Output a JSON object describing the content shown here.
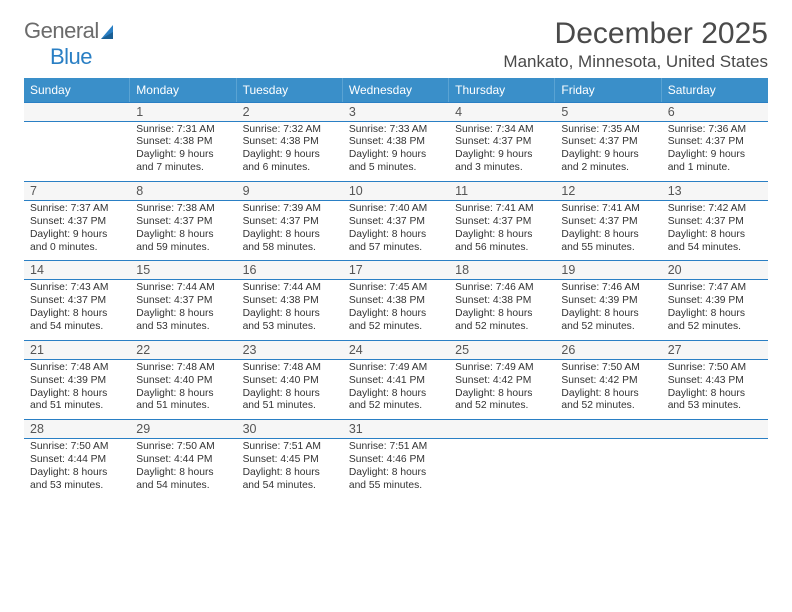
{
  "logo": {
    "text_gray": "General",
    "text_blue": "Blue"
  },
  "header": {
    "title": "December 2025",
    "location": "Mankato, Minnesota, United States"
  },
  "colors": {
    "header_bg": "#3a8fc9",
    "border": "#2a7fc4",
    "gray_text": "#6b6b6b"
  },
  "dow": [
    "Sunday",
    "Monday",
    "Tuesday",
    "Wednesday",
    "Thursday",
    "Friday",
    "Saturday"
  ],
  "weeks": [
    [
      {
        "num": "",
        "sunrise": "",
        "sunset": "",
        "daylight1": "",
        "daylight2": ""
      },
      {
        "num": "1",
        "sunrise": "Sunrise: 7:31 AM",
        "sunset": "Sunset: 4:38 PM",
        "daylight1": "Daylight: 9 hours",
        "daylight2": "and 7 minutes."
      },
      {
        "num": "2",
        "sunrise": "Sunrise: 7:32 AM",
        "sunset": "Sunset: 4:38 PM",
        "daylight1": "Daylight: 9 hours",
        "daylight2": "and 6 minutes."
      },
      {
        "num": "3",
        "sunrise": "Sunrise: 7:33 AM",
        "sunset": "Sunset: 4:38 PM",
        "daylight1": "Daylight: 9 hours",
        "daylight2": "and 5 minutes."
      },
      {
        "num": "4",
        "sunrise": "Sunrise: 7:34 AM",
        "sunset": "Sunset: 4:37 PM",
        "daylight1": "Daylight: 9 hours",
        "daylight2": "and 3 minutes."
      },
      {
        "num": "5",
        "sunrise": "Sunrise: 7:35 AM",
        "sunset": "Sunset: 4:37 PM",
        "daylight1": "Daylight: 9 hours",
        "daylight2": "and 2 minutes."
      },
      {
        "num": "6",
        "sunrise": "Sunrise: 7:36 AM",
        "sunset": "Sunset: 4:37 PM",
        "daylight1": "Daylight: 9 hours",
        "daylight2": "and 1 minute."
      }
    ],
    [
      {
        "num": "7",
        "sunrise": "Sunrise: 7:37 AM",
        "sunset": "Sunset: 4:37 PM",
        "daylight1": "Daylight: 9 hours",
        "daylight2": "and 0 minutes."
      },
      {
        "num": "8",
        "sunrise": "Sunrise: 7:38 AM",
        "sunset": "Sunset: 4:37 PM",
        "daylight1": "Daylight: 8 hours",
        "daylight2": "and 59 minutes."
      },
      {
        "num": "9",
        "sunrise": "Sunrise: 7:39 AM",
        "sunset": "Sunset: 4:37 PM",
        "daylight1": "Daylight: 8 hours",
        "daylight2": "and 58 minutes."
      },
      {
        "num": "10",
        "sunrise": "Sunrise: 7:40 AM",
        "sunset": "Sunset: 4:37 PM",
        "daylight1": "Daylight: 8 hours",
        "daylight2": "and 57 minutes."
      },
      {
        "num": "11",
        "sunrise": "Sunrise: 7:41 AM",
        "sunset": "Sunset: 4:37 PM",
        "daylight1": "Daylight: 8 hours",
        "daylight2": "and 56 minutes."
      },
      {
        "num": "12",
        "sunrise": "Sunrise: 7:41 AM",
        "sunset": "Sunset: 4:37 PM",
        "daylight1": "Daylight: 8 hours",
        "daylight2": "and 55 minutes."
      },
      {
        "num": "13",
        "sunrise": "Sunrise: 7:42 AM",
        "sunset": "Sunset: 4:37 PM",
        "daylight1": "Daylight: 8 hours",
        "daylight2": "and 54 minutes."
      }
    ],
    [
      {
        "num": "14",
        "sunrise": "Sunrise: 7:43 AM",
        "sunset": "Sunset: 4:37 PM",
        "daylight1": "Daylight: 8 hours",
        "daylight2": "and 54 minutes."
      },
      {
        "num": "15",
        "sunrise": "Sunrise: 7:44 AM",
        "sunset": "Sunset: 4:37 PM",
        "daylight1": "Daylight: 8 hours",
        "daylight2": "and 53 minutes."
      },
      {
        "num": "16",
        "sunrise": "Sunrise: 7:44 AM",
        "sunset": "Sunset: 4:38 PM",
        "daylight1": "Daylight: 8 hours",
        "daylight2": "and 53 minutes."
      },
      {
        "num": "17",
        "sunrise": "Sunrise: 7:45 AM",
        "sunset": "Sunset: 4:38 PM",
        "daylight1": "Daylight: 8 hours",
        "daylight2": "and 52 minutes."
      },
      {
        "num": "18",
        "sunrise": "Sunrise: 7:46 AM",
        "sunset": "Sunset: 4:38 PM",
        "daylight1": "Daylight: 8 hours",
        "daylight2": "and 52 minutes."
      },
      {
        "num": "19",
        "sunrise": "Sunrise: 7:46 AM",
        "sunset": "Sunset: 4:39 PM",
        "daylight1": "Daylight: 8 hours",
        "daylight2": "and 52 minutes."
      },
      {
        "num": "20",
        "sunrise": "Sunrise: 7:47 AM",
        "sunset": "Sunset: 4:39 PM",
        "daylight1": "Daylight: 8 hours",
        "daylight2": "and 52 minutes."
      }
    ],
    [
      {
        "num": "21",
        "sunrise": "Sunrise: 7:48 AM",
        "sunset": "Sunset: 4:39 PM",
        "daylight1": "Daylight: 8 hours",
        "daylight2": "and 51 minutes."
      },
      {
        "num": "22",
        "sunrise": "Sunrise: 7:48 AM",
        "sunset": "Sunset: 4:40 PM",
        "daylight1": "Daylight: 8 hours",
        "daylight2": "and 51 minutes."
      },
      {
        "num": "23",
        "sunrise": "Sunrise: 7:48 AM",
        "sunset": "Sunset: 4:40 PM",
        "daylight1": "Daylight: 8 hours",
        "daylight2": "and 51 minutes."
      },
      {
        "num": "24",
        "sunrise": "Sunrise: 7:49 AM",
        "sunset": "Sunset: 4:41 PM",
        "daylight1": "Daylight: 8 hours",
        "daylight2": "and 52 minutes."
      },
      {
        "num": "25",
        "sunrise": "Sunrise: 7:49 AM",
        "sunset": "Sunset: 4:42 PM",
        "daylight1": "Daylight: 8 hours",
        "daylight2": "and 52 minutes."
      },
      {
        "num": "26",
        "sunrise": "Sunrise: 7:50 AM",
        "sunset": "Sunset: 4:42 PM",
        "daylight1": "Daylight: 8 hours",
        "daylight2": "and 52 minutes."
      },
      {
        "num": "27",
        "sunrise": "Sunrise: 7:50 AM",
        "sunset": "Sunset: 4:43 PM",
        "daylight1": "Daylight: 8 hours",
        "daylight2": "and 53 minutes."
      }
    ],
    [
      {
        "num": "28",
        "sunrise": "Sunrise: 7:50 AM",
        "sunset": "Sunset: 4:44 PM",
        "daylight1": "Daylight: 8 hours",
        "daylight2": "and 53 minutes."
      },
      {
        "num": "29",
        "sunrise": "Sunrise: 7:50 AM",
        "sunset": "Sunset: 4:44 PM",
        "daylight1": "Daylight: 8 hours",
        "daylight2": "and 54 minutes."
      },
      {
        "num": "30",
        "sunrise": "Sunrise: 7:51 AM",
        "sunset": "Sunset: 4:45 PM",
        "daylight1": "Daylight: 8 hours",
        "daylight2": "and 54 minutes."
      },
      {
        "num": "31",
        "sunrise": "Sunrise: 7:51 AM",
        "sunset": "Sunset: 4:46 PM",
        "daylight1": "Daylight: 8 hours",
        "daylight2": "and 55 minutes."
      },
      {
        "num": "",
        "sunrise": "",
        "sunset": "",
        "daylight1": "",
        "daylight2": ""
      },
      {
        "num": "",
        "sunrise": "",
        "sunset": "",
        "daylight1": "",
        "daylight2": ""
      },
      {
        "num": "",
        "sunrise": "",
        "sunset": "",
        "daylight1": "",
        "daylight2": ""
      }
    ]
  ]
}
